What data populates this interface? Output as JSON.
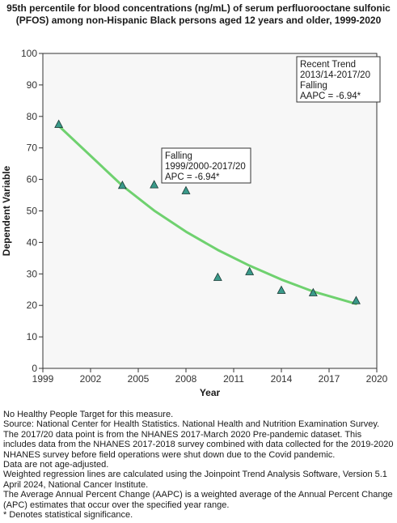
{
  "chart_data": {
    "type": "scatter",
    "title": "95th percentile for blood concentrations (ng/mL) of serum perfluorooctane sulfonic (PFOS) among non-Hispanic Black persons aged 12 years and older, 1999-2020",
    "xlabel": "Year",
    "ylabel": "Dependent Variable",
    "xlim": [
      1999,
      2020
    ],
    "ylim": [
      0,
      100
    ],
    "xticks": [
      1999,
      2002,
      2005,
      2008,
      2011,
      2014,
      2017,
      2020
    ],
    "yticks": [
      0,
      10,
      20,
      30,
      40,
      50,
      60,
      70,
      80,
      90,
      100
    ],
    "grid": false,
    "points": [
      {
        "x": 2000,
        "y": 77.4
      },
      {
        "x": 2004,
        "y": 58
      },
      {
        "x": 2006,
        "y": 58.2
      },
      {
        "x": 2008,
        "y": 56.3
      },
      {
        "x": 2010,
        "y": 28.8
      },
      {
        "x": 2012,
        "y": 30.6
      },
      {
        "x": 2014,
        "y": 24.7
      },
      {
        "x": 2016,
        "y": 23.9
      },
      {
        "x": 2018.7,
        "y": 21.4
      }
    ],
    "trend_line": {
      "x": [
        2000,
        2004,
        2006,
        2008,
        2010,
        2012,
        2014,
        2016,
        2018.7
      ],
      "y": [
        77,
        58,
        50.1,
        43.4,
        37.6,
        32.6,
        28.2,
        24.4,
        20.5
      ]
    },
    "annotations": [
      {
        "lines": [
          "Recent Trend",
          "2013/14-2017/20",
          "Falling",
          "AAPC = -6.94*"
        ],
        "placement": "top-right"
      },
      {
        "lines": [
          "Falling",
          "1999/2000-2017/20",
          "APC = -6.94*"
        ],
        "placement": "upper-middle"
      }
    ],
    "colors": {
      "marker": "#3a9a8a",
      "marker_edge": "#1a3a34",
      "line": "#6fd16f",
      "plot_bg": "#f7f7f7"
    }
  },
  "footnotes": [
    "No Healthy People Target for this measure.",
    "Source: National Center for Health Statistics. National Health and Nutrition Examination Survey. The 2017/20 data point is from the NHANES 2017-March 2020 Pre-pandemic dataset. This includes data from the NHANES 2017-2018 survey combined with data collected for the 2019-2020 NHANES survey before field operations were shut down due to the Covid pandemic.",
    "Data are not age-adjusted.",
    "Weighted regression lines are calculated using the Joinpoint Trend Analysis Software, Version 5.1 April 2024, National Cancer Institute.",
    "The Average Annual Percent Change (AAPC) is a weighted average of the Annual Percent Change (APC) estimates that occur over the specified year range.",
    "* Denotes statistical significance."
  ]
}
